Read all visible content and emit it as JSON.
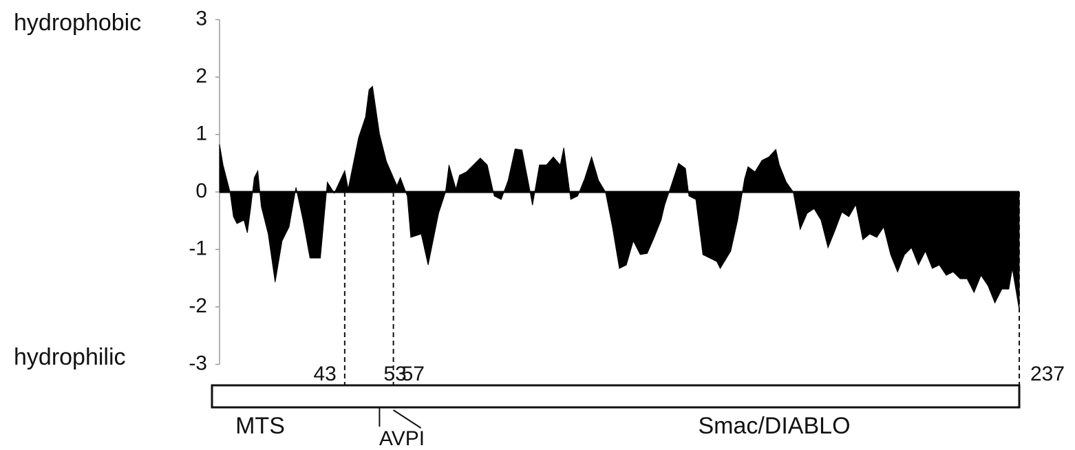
{
  "chart_data": {
    "type": "area",
    "top_label": "hydrophobic",
    "bottom_label": "hydrophilic",
    "color": "#000000",
    "xlim": [
      7,
      237
    ],
    "ylim": [
      -3,
      3
    ],
    "yticks": [
      -3,
      -2,
      -1,
      0,
      1,
      2,
      3
    ],
    "x": [
      7,
      8,
      10,
      11,
      12,
      14,
      15,
      16,
      17,
      18,
      19,
      21,
      23,
      25,
      27,
      29,
      31,
      33,
      36,
      38,
      40,
      43,
      44,
      47,
      49,
      50,
      51,
      53,
      55,
      58,
      59,
      61,
      62,
      65,
      67,
      70,
      72,
      73,
      75,
      76,
      78,
      80,
      82,
      84,
      86,
      88,
      90,
      92,
      94,
      96,
      97,
      99,
      101,
      103,
      105,
      106,
      108,
      110,
      112,
      114,
      116,
      118,
      120,
      122,
      124,
      126,
      128,
      130,
      132,
      134,
      135,
      137,
      139,
      141,
      142,
      144,
      146,
      148,
      150,
      151,
      154,
      156,
      158,
      159,
      161,
      163,
      165,
      167,
      168,
      170,
      172,
      174,
      176,
      178,
      180,
      182,
      184,
      186,
      188,
      190,
      192,
      194,
      196,
      198,
      200,
      202,
      204,
      206,
      208,
      210,
      212,
      214,
      216,
      218,
      220,
      222,
      224,
      226,
      228,
      230,
      232,
      234,
      235,
      237
    ],
    "values": [
      0.83,
      0.47,
      0,
      -0.43,
      -0.55,
      -0.49,
      -0.71,
      -0.25,
      0.25,
      0.37,
      -0.25,
      -0.73,
      -1.57,
      -0.85,
      -0.61,
      0.08,
      -0.49,
      -1.15,
      -1.15,
      0.17,
      -0.02,
      0.37,
      0.05,
      0.95,
      1.31,
      1.78,
      1.84,
      1.01,
      0.53,
      0.11,
      0.25,
      -0.07,
      -0.79,
      -0.73,
      -1.27,
      -0.37,
      0,
      0.47,
      0.05,
      0.29,
      0.35,
      0.47,
      0.59,
      0.47,
      -0.07,
      -0.13,
      0.2,
      0.75,
      0.73,
      0.11,
      -0.23,
      0.47,
      0.47,
      0.61,
      0.47,
      0.77,
      -0.13,
      -0.07,
      0.23,
      0.61,
      0.2,
      0,
      -0.61,
      -1.33,
      -1.27,
      -0.85,
      -1.09,
      -1.07,
      -0.79,
      -0.49,
      -0.23,
      0.13,
      0.5,
      0.41,
      -0.07,
      -0.13,
      -1.09,
      -1.15,
      -1.21,
      -1.33,
      -1.03,
      -0.49,
      0.23,
      0.44,
      0.35,
      0.55,
      0.61,
      0.74,
      0.47,
      0.17,
      0,
      -0.65,
      -0.37,
      -0.29,
      -0.49,
      -0.97,
      -0.67,
      -0.35,
      -0.43,
      -0.22,
      -0.83,
      -0.73,
      -0.79,
      -0.61,
      -1.09,
      -1.39,
      -1.09,
      -0.97,
      -1.27,
      -1.03,
      -1.33,
      -1.27,
      -1.45,
      -1.39,
      -1.51,
      -1.51,
      -1.75,
      -1.45,
      -1.63,
      -1.93,
      -1.69,
      -1.69,
      -1.33,
      -2.05
    ],
    "residue_ticks": [
      43,
      53,
      57,
      237
    ],
    "region_labels": [
      "MTS",
      "Smac/DIABLO"
    ],
    "motif_label": "AVPI"
  }
}
